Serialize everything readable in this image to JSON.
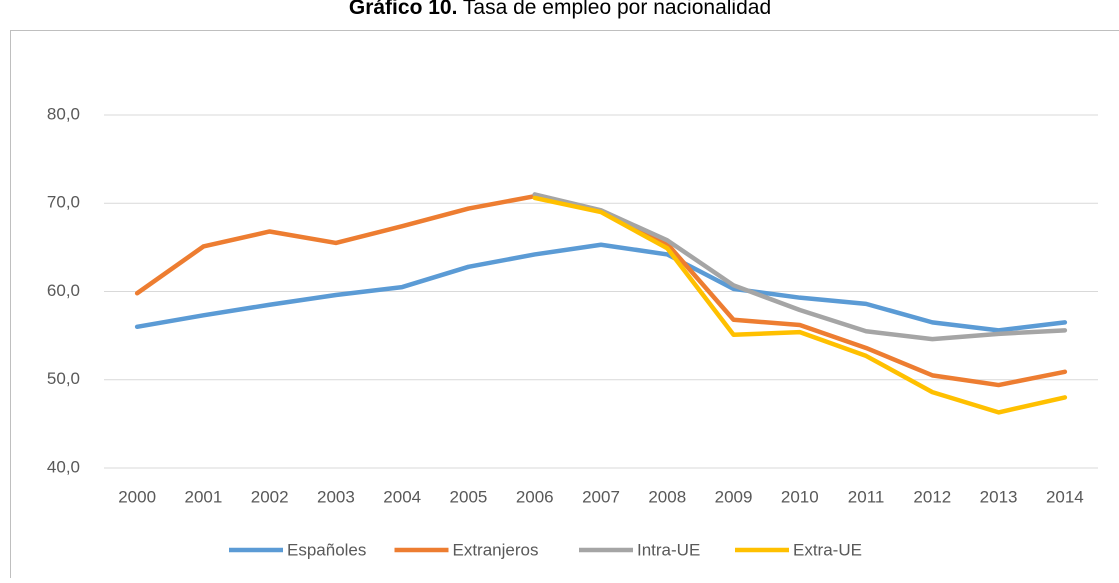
{
  "chart_data": {
    "type": "line",
    "title_number": "Gráfico 10.",
    "title": "Tasa de empleo por nacionalidad",
    "categories": [
      "2000",
      "2001",
      "2002",
      "2003",
      "2004",
      "2005",
      "2006",
      "2007",
      "2008",
      "2009",
      "2010",
      "2011",
      "2012",
      "2013",
      "2014"
    ],
    "series": [
      {
        "name": "Españoles",
        "color": "#5b9bd5",
        "values": [
          56.0,
          57.3,
          58.5,
          59.6,
          60.5,
          62.8,
          64.2,
          65.3,
          64.2,
          60.3,
          59.3,
          58.6,
          56.5,
          55.6,
          56.5
        ]
      },
      {
        "name": "Extranjeros",
        "color": "#ed7d31",
        "values": [
          59.8,
          65.1,
          66.8,
          65.5,
          67.4,
          69.4,
          70.8,
          69.1,
          65.4,
          56.8,
          56.2,
          53.6,
          50.5,
          49.4,
          50.9
        ]
      },
      {
        "name": "Intra-UE",
        "color": "#a5a5a5",
        "values": [
          null,
          null,
          null,
          null,
          null,
          null,
          71.0,
          69.2,
          65.8,
          60.7,
          57.9,
          55.5,
          54.6,
          55.2,
          55.6
        ]
      },
      {
        "name": "Extra-UE",
        "color": "#ffc000",
        "values": [
          null,
          null,
          null,
          null,
          null,
          null,
          70.6,
          69.0,
          64.9,
          55.1,
          55.4,
          52.7,
          48.6,
          46.3,
          48.0
        ]
      }
    ],
    "ylim": [
      40,
      80
    ],
    "yticks": [
      {
        "value": 40,
        "label": "40,0"
      },
      {
        "value": 50,
        "label": "50,0"
      },
      {
        "value": 60,
        "label": "60,0"
      },
      {
        "value": 70,
        "label": "70,0"
      },
      {
        "value": 80,
        "label": "80,0"
      }
    ],
    "grid": true,
    "legend": "bottom"
  }
}
